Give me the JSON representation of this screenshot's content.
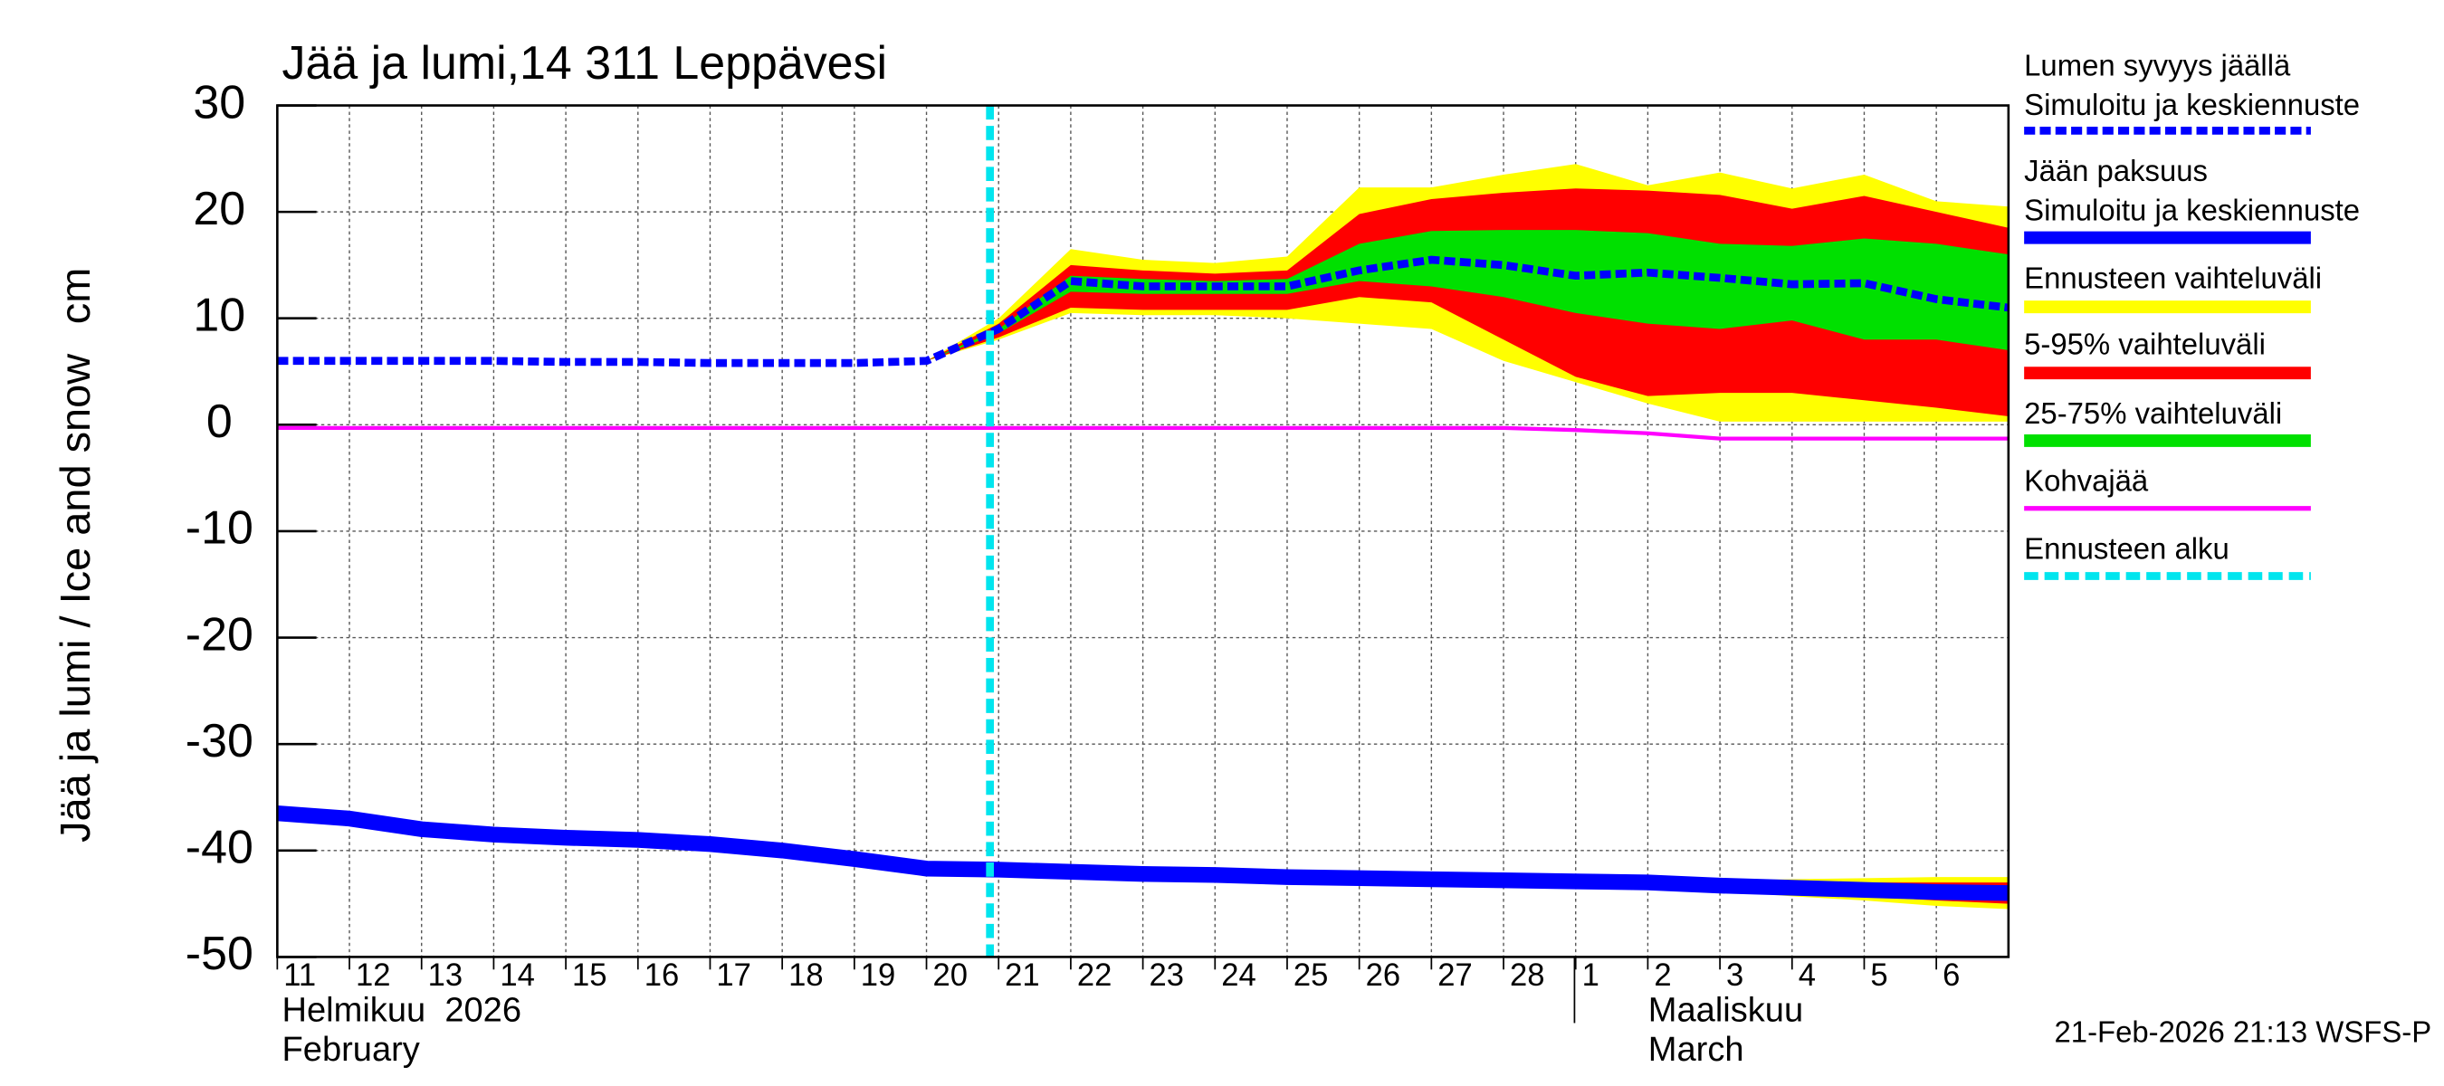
{
  "chart_data": {
    "type": "line",
    "title": "Jää ja lumi,14 311 Leppävesi",
    "y_label": "Jää ja lumi / Ice and snow",
    "y_unit": "cm",
    "month_labels": [
      [
        "Helmikuu  2026",
        "February"
      ],
      [
        "Maaliskuu",
        "March"
      ]
    ],
    "timestamp": "21-Feb-2026 21:13 WSFS-P",
    "xlim": [
      0,
      24
    ],
    "ylim": [
      -50,
      30
    ],
    "yticks": [
      -50,
      -40,
      -30,
      -20,
      -10,
      0,
      10,
      20,
      30
    ],
    "xticks": [
      {
        "value": 0,
        "label": "11"
      },
      {
        "value": 1,
        "label": "12"
      },
      {
        "value": 2,
        "label": "13"
      },
      {
        "value": 3,
        "label": "14"
      },
      {
        "value": 4,
        "label": "15"
      },
      {
        "value": 5,
        "label": "16"
      },
      {
        "value": 6,
        "label": "17"
      },
      {
        "value": 7,
        "label": "18"
      },
      {
        "value": 8,
        "label": "19"
      },
      {
        "value": 9,
        "label": "20"
      },
      {
        "value": 10,
        "label": "21"
      },
      {
        "value": 11,
        "label": "22"
      },
      {
        "value": 12,
        "label": "23"
      },
      {
        "value": 13,
        "label": "24"
      },
      {
        "value": 14,
        "label": "25"
      },
      {
        "value": 15,
        "label": "26"
      },
      {
        "value": 16,
        "label": "27"
      },
      {
        "value": 17,
        "label": "28"
      },
      {
        "value": 18,
        "label": "1"
      },
      {
        "value": 19,
        "label": "2"
      },
      {
        "value": 20,
        "label": "3"
      },
      {
        "value": 21,
        "label": "4"
      },
      {
        "value": 22,
        "label": "5"
      },
      {
        "value": 23,
        "label": "6"
      }
    ],
    "grid": true,
    "x": [
      0,
      1,
      2,
      3,
      4,
      5,
      6,
      7,
      8,
      9,
      10,
      11,
      12,
      13,
      14,
      15,
      16,
      17,
      18,
      19,
      20,
      21,
      22,
      23,
      24
    ],
    "bands": [
      {
        "name": "Ennusteen vaihteluväli",
        "color": "#ffff00",
        "snow_low": [
          null,
          null,
          null,
          null,
          null,
          null,
          null,
          null,
          null,
          6,
          8,
          10.5,
          10.3,
          10.3,
          10,
          9.5,
          9,
          6,
          4,
          2,
          0.3,
          0.3,
          0.3,
          0.3,
          0.3
        ],
        "snow_high": [
          null,
          null,
          null,
          null,
          null,
          null,
          null,
          null,
          null,
          6,
          10,
          16.5,
          15.5,
          15.2,
          15.8,
          22.3,
          22.3,
          23.5,
          24.5,
          22.5,
          23.7,
          22.2,
          23.5,
          21,
          20.5
        ],
        "ice_low": [
          null,
          null,
          null,
          null,
          null,
          null,
          null,
          null,
          null,
          -41.7,
          -41.8,
          -42,
          -42.2,
          -42.3,
          -42.5,
          -42.6,
          -42.7,
          -42.9,
          -43.1,
          -43.4,
          -43.8,
          -44.3,
          -44.7,
          -45.2,
          -45.5
        ],
        "ice_high": [
          null,
          null,
          null,
          null,
          null,
          null,
          null,
          null,
          null,
          -41.7,
          -41.8,
          -42,
          -42.2,
          -42.3,
          -42.5,
          -42.6,
          -42.7,
          -42.8,
          -42.9,
          -42.9,
          -42.8,
          -42.7,
          -42.6,
          -42.5,
          -42.5
        ]
      },
      {
        "name": "5-95% vaihteluväli",
        "color": "#ff0000",
        "snow_low": [
          null,
          null,
          null,
          null,
          null,
          null,
          null,
          null,
          null,
          6,
          8.2,
          11,
          10.8,
          10.8,
          10.8,
          12,
          11.5,
          8,
          4.5,
          2.7,
          3,
          3,
          2.3,
          1.6,
          0.8
        ],
        "snow_high": [
          null,
          null,
          null,
          null,
          null,
          null,
          null,
          null,
          null,
          6,
          9.5,
          15,
          14.5,
          14.2,
          14.5,
          19.8,
          21.2,
          21.8,
          22.2,
          22,
          21.6,
          20.3,
          21.5,
          20,
          18.5
        ],
        "ice_low": [
          null,
          null,
          null,
          null,
          null,
          null,
          null,
          null,
          null,
          -41.7,
          -41.8,
          -42,
          -42.2,
          -42.3,
          -42.5,
          -42.6,
          -42.7,
          -42.9,
          -43.1,
          -43.3,
          -43.6,
          -44,
          -44.3,
          -44.7,
          -45
        ],
        "ice_high": [
          null,
          null,
          null,
          null,
          null,
          null,
          null,
          null,
          null,
          -41.7,
          -41.8,
          -42,
          -42.2,
          -42.3,
          -42.5,
          -42.6,
          -42.7,
          -42.8,
          -42.9,
          -43,
          -43,
          -43,
          -43,
          -43,
          -43
        ]
      },
      {
        "name": "25-75% vaihteluväli",
        "color": "#00e000",
        "snow_low": [
          null,
          null,
          null,
          null,
          null,
          null,
          null,
          null,
          null,
          6,
          8.6,
          12.5,
          12.3,
          12.3,
          12.3,
          13.5,
          13,
          12,
          10.5,
          9.5,
          9,
          9.8,
          8,
          8,
          7
        ],
        "snow_high": [
          null,
          null,
          null,
          null,
          null,
          null,
          null,
          null,
          null,
          6,
          9,
          14,
          13.7,
          13.5,
          13.7,
          17,
          18.2,
          18.3,
          18.3,
          18,
          17,
          16.8,
          17.5,
          17,
          16
        ],
        "ice_low": [
          null,
          null,
          null,
          null,
          null,
          null,
          null,
          null,
          null,
          -41.7,
          -41.8,
          -42,
          -42.2,
          -42.3,
          -42.5,
          -42.6,
          -42.7,
          -42.8,
          -42.9,
          -43.1,
          -43.4,
          -43.6,
          -43.8,
          -44,
          -44.2
        ],
        "ice_high": [
          null,
          null,
          null,
          null,
          null,
          null,
          null,
          null,
          null,
          -41.7,
          -41.8,
          -42,
          -42.2,
          -42.3,
          -42.5,
          -42.6,
          -42.7,
          -42.8,
          -42.9,
          -43,
          -43.2,
          -43.4,
          -43.6,
          -43.8,
          -43.9
        ]
      }
    ],
    "series": [
      {
        "name": "Lumen syvyys jäällä",
        "name2": "Simuloitu ja keskiennuste",
        "color": "#0000ff",
        "dashed": true,
        "values": [
          6,
          6,
          6,
          6,
          5.9,
          5.9,
          5.8,
          5.8,
          5.8,
          6,
          9,
          13.5,
          13,
          13,
          13,
          14.5,
          15.5,
          15,
          14,
          14.3,
          13.8,
          13.2,
          13.3,
          11.8,
          11
        ]
      },
      {
        "name": "Jään paksuus",
        "name2": "Simuloitu ja keskiennuste",
        "color": "#0000ff",
        "dashed": false,
        "values": [
          -36.5,
          -37,
          -38,
          -38.5,
          -38.8,
          -39,
          -39.4,
          -40,
          -40.8,
          -41.7,
          -41.8,
          -42,
          -42.2,
          -42.3,
          -42.5,
          -42.6,
          -42.7,
          -42.8,
          -42.9,
          -43,
          -43.3,
          -43.5,
          -43.7,
          -43.9,
          -44
        ]
      },
      {
        "name": "Kohvajää",
        "color": "#ff00ff",
        "dashed": false,
        "values": [
          -0.3,
          -0.3,
          -0.3,
          -0.3,
          -0.3,
          -0.3,
          -0.3,
          -0.3,
          -0.3,
          -0.3,
          -0.3,
          -0.3,
          -0.3,
          -0.3,
          -0.3,
          -0.3,
          -0.3,
          -0.3,
          -0.5,
          -0.8,
          -1.3,
          -1.3,
          -1.3,
          -1.3,
          -1.3
        ]
      }
    ],
    "forecast_start": {
      "name": "Ennusteen alku",
      "x": 9.88,
      "color": "#00e5ee"
    }
  }
}
